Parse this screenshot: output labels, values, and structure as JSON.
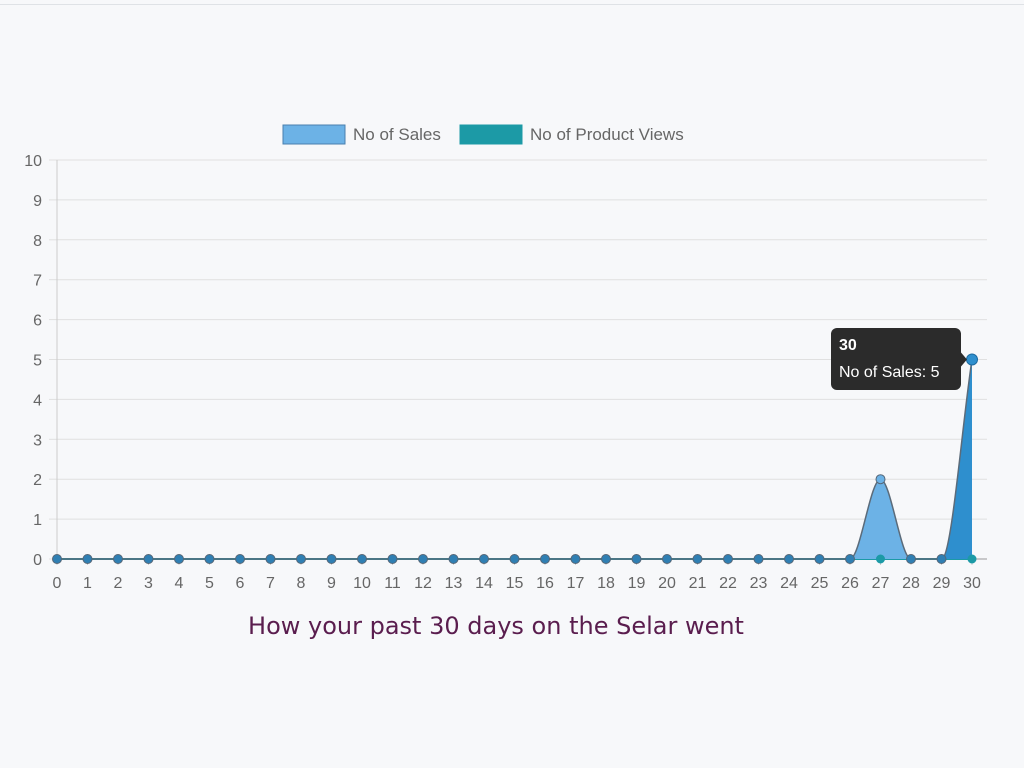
{
  "caption": "How your past 30 days on the Selar went",
  "chart_data": {
    "type": "area",
    "x": [
      0,
      1,
      2,
      3,
      4,
      5,
      6,
      7,
      8,
      9,
      10,
      11,
      12,
      13,
      14,
      15,
      16,
      17,
      18,
      19,
      20,
      21,
      22,
      23,
      24,
      25,
      26,
      27,
      28,
      29,
      30
    ],
    "series": [
      {
        "name": "No of Sales",
        "color": "#6cb2e6",
        "values": [
          0,
          0,
          0,
          0,
          0,
          0,
          0,
          0,
          0,
          0,
          0,
          0,
          0,
          0,
          0,
          0,
          0,
          0,
          0,
          0,
          0,
          0,
          0,
          0,
          0,
          0,
          0,
          2,
          0,
          0,
          5
        ]
      },
      {
        "name": "No of Product Views",
        "color": "#1c9aa6",
        "values": [
          0,
          0,
          0,
          0,
          0,
          0,
          0,
          0,
          0,
          0,
          0,
          0,
          0,
          0,
          0,
          0,
          0,
          0,
          0,
          0,
          0,
          0,
          0,
          0,
          0,
          0,
          0,
          0,
          0,
          0,
          0
        ]
      }
    ],
    "ylim": [
      0,
      10
    ],
    "yticks": [
      0,
      1,
      2,
      3,
      4,
      5,
      6,
      7,
      8,
      9,
      10
    ],
    "grid": true,
    "legend": "top",
    "tooltip": {
      "title": "30",
      "body": "No of Sales: 5"
    }
  }
}
